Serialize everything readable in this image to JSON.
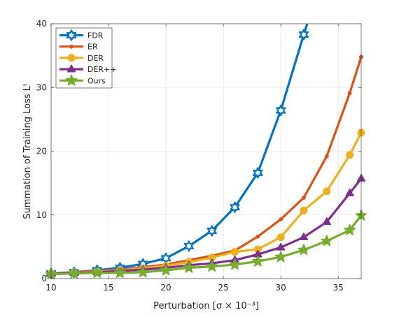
{
  "chart_data": {
    "type": "line",
    "title": "",
    "xlabel": "Perturbation [σ × 10⁻³]",
    "ylabel": "Summation of Training Loss Lᵗ",
    "xlim": [
      10,
      37
    ],
    "ylim": [
      0,
      40
    ],
    "xticks": [
      "10",
      "15",
      "20",
      "25",
      "30",
      "35"
    ],
    "yticks": [
      "0",
      "10",
      "20",
      "30",
      "40"
    ],
    "grid": true,
    "legend_position": "top-left",
    "x": [
      10,
      12,
      14,
      16,
      18,
      20,
      22,
      24,
      26,
      28,
      30,
      32,
      34,
      36,
      37
    ],
    "series": [
      {
        "name": "FDR",
        "color": "#0072BD",
        "marker": "hexagram",
        "values": [
          0.8,
          1.0,
          1.3,
          1.7,
          2.3,
          3.2,
          5.1,
          7.5,
          11.2,
          16.6,
          26.4,
          38.3,
          null,
          null,
          null
        ],
        "end": [
          32.3,
          40.0
        ]
      },
      {
        "name": "ER",
        "color": "#D95319",
        "marker": "dot",
        "values": [
          0.8,
          1.0,
          1.2,
          1.4,
          1.8,
          2.2,
          2.9,
          3.6,
          4.4,
          6.6,
          9.3,
          12.7,
          19.2,
          29.1,
          34.8
        ]
      },
      {
        "name": "DER",
        "color": "#EDB120",
        "marker": "circle",
        "values": [
          0.8,
          0.9,
          1.1,
          1.3,
          1.6,
          2.0,
          2.6,
          3.3,
          4.2,
          4.6,
          6.5,
          10.7,
          13.7,
          19.4,
          22.9
        ]
      },
      {
        "name": "DER++",
        "color": "#7E2F8E",
        "marker": "triangle",
        "values": [
          0.8,
          0.9,
          1.0,
          1.2,
          1.4,
          1.7,
          2.1,
          2.4,
          2.9,
          3.8,
          4.9,
          6.5,
          8.9,
          13.4,
          15.7
        ]
      },
      {
        "name": "Ours",
        "color": "#77AC30",
        "marker": "pentagram",
        "values": [
          0.7,
          0.8,
          0.9,
          0.9,
          1.0,
          1.3,
          1.7,
          1.9,
          2.2,
          2.7,
          3.4,
          4.5,
          5.9,
          7.6,
          9.9
        ]
      }
    ]
  }
}
